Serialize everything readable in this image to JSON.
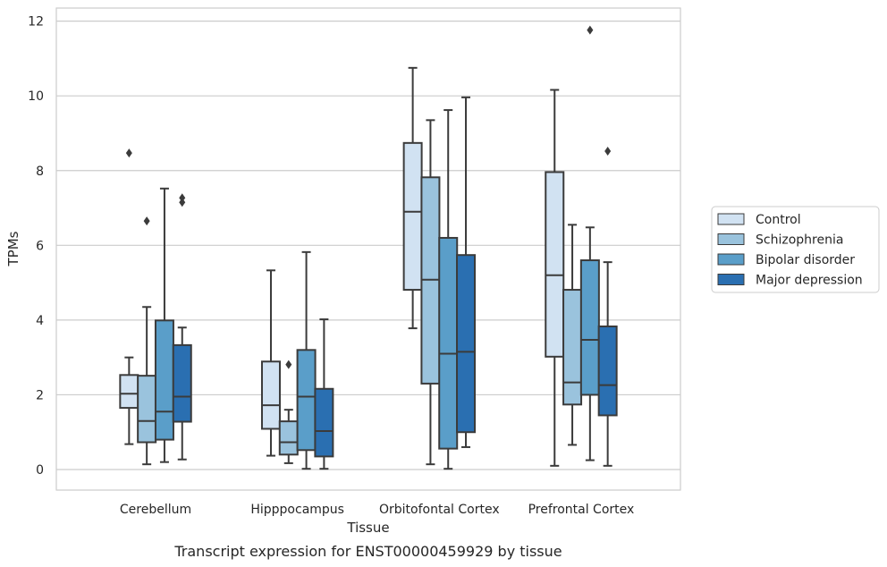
{
  "chart_data": {
    "type": "box",
    "xlabel": "Tissue",
    "ylabel": "TPMs",
    "caption": "Transcript expression for ENST00000459929 by tissue",
    "ylim": [
      -0.55,
      12.35
    ],
    "yticks": [
      0,
      2,
      4,
      6,
      8,
      10,
      12
    ],
    "grid": true,
    "legend_position": "right",
    "categories": [
      "Cerebellum",
      "Hipppocampus",
      "Orbitofontal Cortex",
      "Prefrontal Cortex"
    ],
    "series": [
      {
        "name": "Control",
        "color": "#d1e2f2",
        "boxes": [
          {
            "whislo": 0.68,
            "q1": 1.65,
            "med": 2.03,
            "q3": 2.53,
            "whishi": 3.0,
            "fliers": [
              8.47
            ]
          },
          {
            "whislo": 0.37,
            "q1": 1.09,
            "med": 1.72,
            "q3": 2.89,
            "whishi": 5.33,
            "fliers": []
          },
          {
            "whislo": 3.78,
            "q1": 4.81,
            "med": 6.9,
            "q3": 8.74,
            "whishi": 10.75,
            "fliers": []
          },
          {
            "whislo": 0.1,
            "q1": 3.02,
            "med": 5.2,
            "q3": 7.96,
            "whishi": 10.16,
            "fliers": []
          }
        ]
      },
      {
        "name": "Schizophrenia",
        "color": "#9ac3dd",
        "boxes": [
          {
            "whislo": 0.14,
            "q1": 0.73,
            "med": 1.3,
            "q3": 2.51,
            "whishi": 4.35,
            "fliers": [
              6.65
            ]
          },
          {
            "whislo": 0.17,
            "q1": 0.4,
            "med": 0.73,
            "q3": 1.29,
            "whishi": 1.6,
            "fliers": [
              2.81
            ]
          },
          {
            "whislo": 0.14,
            "q1": 2.3,
            "med": 5.08,
            "q3": 7.82,
            "whishi": 9.35,
            "fliers": []
          },
          {
            "whislo": 0.66,
            "q1": 1.74,
            "med": 2.33,
            "q3": 4.81,
            "whishi": 6.55,
            "fliers": []
          }
        ]
      },
      {
        "name": "Bipolar disorder",
        "color": "#5a9ec9",
        "boxes": [
          {
            "whislo": 0.2,
            "q1": 0.8,
            "med": 1.55,
            "q3": 3.99,
            "whishi": 7.52,
            "fliers": []
          },
          {
            "whislo": 0.02,
            "q1": 0.52,
            "med": 1.95,
            "q3": 3.2,
            "whishi": 5.82,
            "fliers": []
          },
          {
            "whislo": 0.02,
            "q1": 0.56,
            "med": 3.1,
            "q3": 6.2,
            "whishi": 9.62,
            "fliers": []
          },
          {
            "whislo": 0.25,
            "q1": 2.0,
            "med": 3.47,
            "q3": 5.6,
            "whishi": 6.48,
            "fliers": [
              11.76
            ]
          }
        ]
      },
      {
        "name": "Major depression",
        "color": "#2a6fb1",
        "boxes": [
          {
            "whislo": 0.27,
            "q1": 1.28,
            "med": 1.95,
            "q3": 3.33,
            "whishi": 3.8,
            "fliers": [
              7.15,
              7.27
            ]
          },
          {
            "whislo": 0.02,
            "q1": 0.35,
            "med": 1.03,
            "q3": 2.16,
            "whishi": 4.02,
            "fliers": []
          },
          {
            "whislo": 0.6,
            "q1": 1.0,
            "med": 3.15,
            "q3": 5.74,
            "whishi": 9.96,
            "fliers": []
          },
          {
            "whislo": 0.1,
            "q1": 1.45,
            "med": 2.26,
            "q3": 3.83,
            "whishi": 5.55,
            "fliers": [
              8.52
            ]
          }
        ]
      }
    ]
  }
}
